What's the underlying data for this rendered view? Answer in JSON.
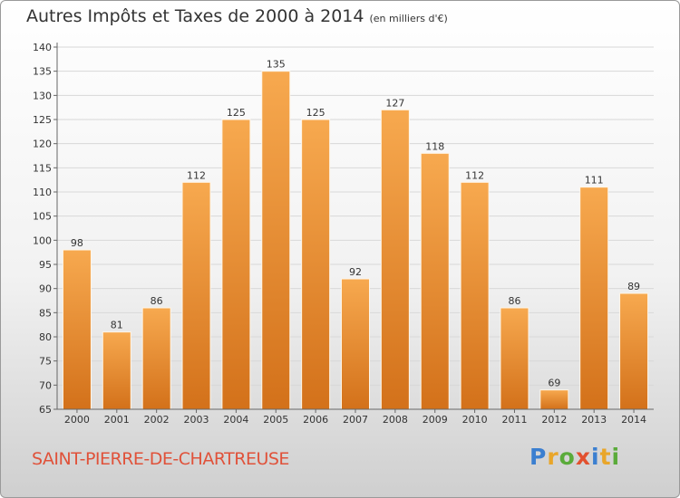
{
  "title": "Autres Impôts et Taxes de 2000 à 2014",
  "subtitle": "(en milliers d'€)",
  "footer": {
    "city": "SAINT-PIERRE-DE-CHARTREUSE",
    "logo": [
      "P",
      "r",
      "o",
      "x",
      "i",
      "t",
      "i"
    ]
  },
  "colors": {
    "bar_light": "#f7a94f",
    "bar_dark": "#d3711a",
    "axis": "#666666",
    "grid": "#d8d8d8",
    "city": "#e0523a"
  },
  "chart_data": {
    "type": "bar",
    "categories": [
      "2000",
      "2001",
      "2002",
      "2003",
      "2004",
      "2005",
      "2006",
      "2007",
      "2008",
      "2009",
      "2010",
      "2011",
      "2012",
      "2013",
      "2014"
    ],
    "values": [
      98,
      81,
      86,
      112,
      125,
      135,
      125,
      92,
      127,
      118,
      112,
      86,
      69,
      111,
      89
    ],
    "ylim": [
      65,
      140
    ],
    "yticks": [
      65,
      70,
      75,
      80,
      85,
      90,
      95,
      100,
      105,
      110,
      115,
      120,
      125,
      130,
      135,
      140
    ],
    "title": "Autres Impôts et Taxes de 2000 à 2014",
    "xlabel": "",
    "ylabel": "",
    "grid": true
  }
}
